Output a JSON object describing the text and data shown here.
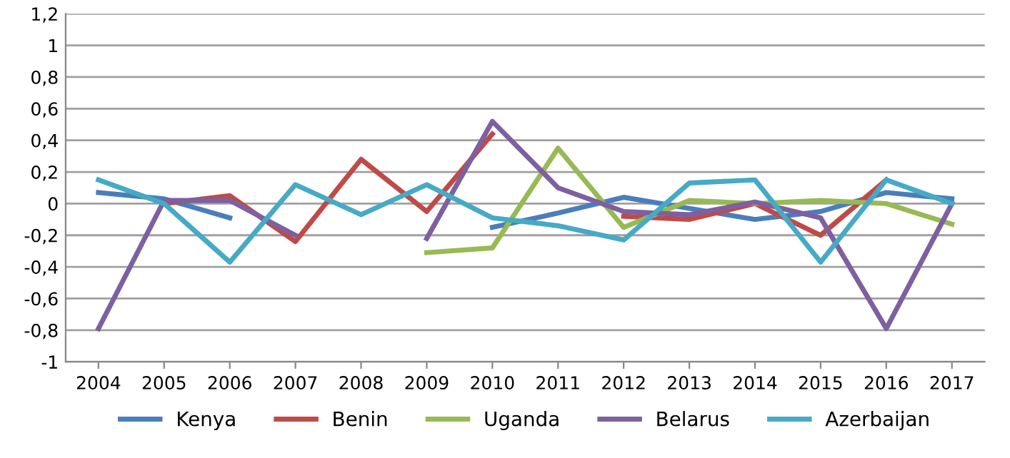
{
  "chart_data": {
    "type": "line",
    "categories": [
      "2004",
      "2005",
      "2006",
      "2007",
      "2008",
      "2009",
      "2010",
      "2011",
      "2012",
      "2013",
      "2014",
      "2015",
      "2016",
      "2017"
    ],
    "series": [
      {
        "name": "Kenya",
        "color": "#4a7ebb",
        "values": [
          0.07,
          0.03,
          -0.09,
          null,
          null,
          null,
          -0.15,
          -0.06,
          0.04,
          -0.03,
          -0.1,
          -0.05,
          0.07,
          0.03
        ]
      },
      {
        "name": "Benin",
        "color": "#be4b48",
        "values": [
          null,
          0.0,
          0.05,
          -0.24,
          0.28,
          -0.05,
          0.44,
          null,
          -0.08,
          -0.1,
          0.0,
          -0.2,
          0.15,
          null
        ]
      },
      {
        "name": "Uganda",
        "color": "#98b954",
        "values": [
          null,
          null,
          null,
          null,
          null,
          -0.31,
          -0.28,
          0.35,
          -0.15,
          0.02,
          0.0,
          0.02,
          0.0,
          -0.13
        ]
      },
      {
        "name": "Belarus",
        "color": "#7d60a0",
        "values": [
          -0.79,
          0.02,
          0.02,
          -0.2,
          null,
          -0.22,
          0.52,
          0.1,
          -0.05,
          -0.07,
          0.01,
          -0.09,
          -0.79,
          0.0
        ]
      },
      {
        "name": "Azerbaijan",
        "color": "#46aac5",
        "values": [
          0.15,
          0.0,
          -0.37,
          0.12,
          -0.07,
          0.12,
          -0.09,
          -0.14,
          -0.23,
          0.13,
          0.15,
          -0.37,
          0.15,
          0.0
        ]
      }
    ],
    "ylim": [
      -1,
      1.2
    ],
    "yticks": [
      {
        "value": -1,
        "label": "-1"
      },
      {
        "value": -0.8,
        "label": "-0,8"
      },
      {
        "value": -0.6,
        "label": "-0,6"
      },
      {
        "value": -0.4,
        "label": "-0,4"
      },
      {
        "value": -0.2,
        "label": "-0,2"
      },
      {
        "value": 0,
        "label": "0"
      },
      {
        "value": 0.2,
        "label": "0,2"
      },
      {
        "value": 0.4,
        "label": "0,4"
      },
      {
        "value": 0.6,
        "label": "0,6"
      },
      {
        "value": 0.8,
        "label": "0,8"
      },
      {
        "value": 1,
        "label": "1"
      },
      {
        "value": 1.2,
        "label": "1,2"
      }
    ],
    "grid": "y",
    "legend": "bottom",
    "marker": "none",
    "line_style": "solid"
  }
}
